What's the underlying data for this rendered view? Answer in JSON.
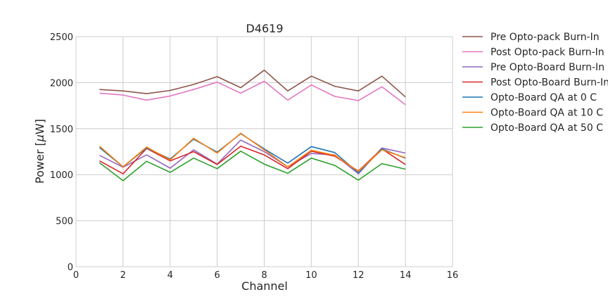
{
  "chart_data": {
    "type": "line",
    "title": "D4619",
    "xlabel": "Channel",
    "ylabel_prefix": "Power [",
    "ylabel_mu": "μ",
    "ylabel_suffix": "W]",
    "xlim": [
      0,
      16
    ],
    "ylim": [
      0,
      2500
    ],
    "xticks": [
      0,
      2,
      4,
      6,
      8,
      10,
      12,
      14,
      16
    ],
    "yticks": [
      0,
      500,
      1000,
      1500,
      2000,
      2500
    ],
    "grid": true,
    "legend_position": "outside-right",
    "x": [
      1,
      2,
      3,
      4,
      5,
      6,
      7,
      8,
      9,
      10,
      11,
      12,
      13,
      14
    ],
    "series": [
      {
        "name": "Pre Opto-pack Burn-In",
        "color": "#8c564b",
        "values": [
          1925,
          1910,
          1880,
          1915,
          1980,
          2065,
          1945,
          2135,
          1910,
          2070,
          1960,
          1910,
          2070,
          1845
        ]
      },
      {
        "name": "Post Opto-pack Burn-In",
        "color": "#e377c2",
        "values": [
          1885,
          1865,
          1810,
          1855,
          1925,
          2005,
          1885,
          2015,
          1810,
          1975,
          1850,
          1805,
          1955,
          1760
        ]
      },
      {
        "name": "Pre Opto-Board Burn-In",
        "color": "#9467bd",
        "values": [
          1210,
          1080,
          1215,
          1070,
          1270,
          1115,
          1375,
          1250,
          1085,
          1230,
          1215,
          1010,
          1290,
          1235
        ]
      },
      {
        "name": "Post Opto-Board Burn-In",
        "color": "#d62728",
        "values": [
          1150,
          1010,
          1285,
          1150,
          1250,
          1110,
          1310,
          1215,
          1065,
          1255,
          1200,
          1040,
          1280,
          1110
        ]
      },
      {
        "name": "Opto-Board QA at 0 C",
        "color": "#1f77b4",
        "values": [
          1295,
          1085,
          1290,
          1170,
          1385,
          1245,
          1445,
          1280,
          1125,
          1305,
          1240,
          1020,
          1280,
          1180
        ]
      },
      {
        "name": "Opto-Board QA at 10 C",
        "color": "#ff7f0e",
        "values": [
          1310,
          1085,
          1300,
          1160,
          1395,
          1235,
          1450,
          1270,
          1085,
          1265,
          1210,
          1035,
          1270,
          1185
        ]
      },
      {
        "name": "Opto-Board QA at 50 C",
        "color": "#2ca02c",
        "values": [
          1130,
          935,
          1145,
          1025,
          1180,
          1065,
          1255,
          1115,
          1015,
          1180,
          1100,
          940,
          1120,
          1060
        ]
      }
    ]
  }
}
